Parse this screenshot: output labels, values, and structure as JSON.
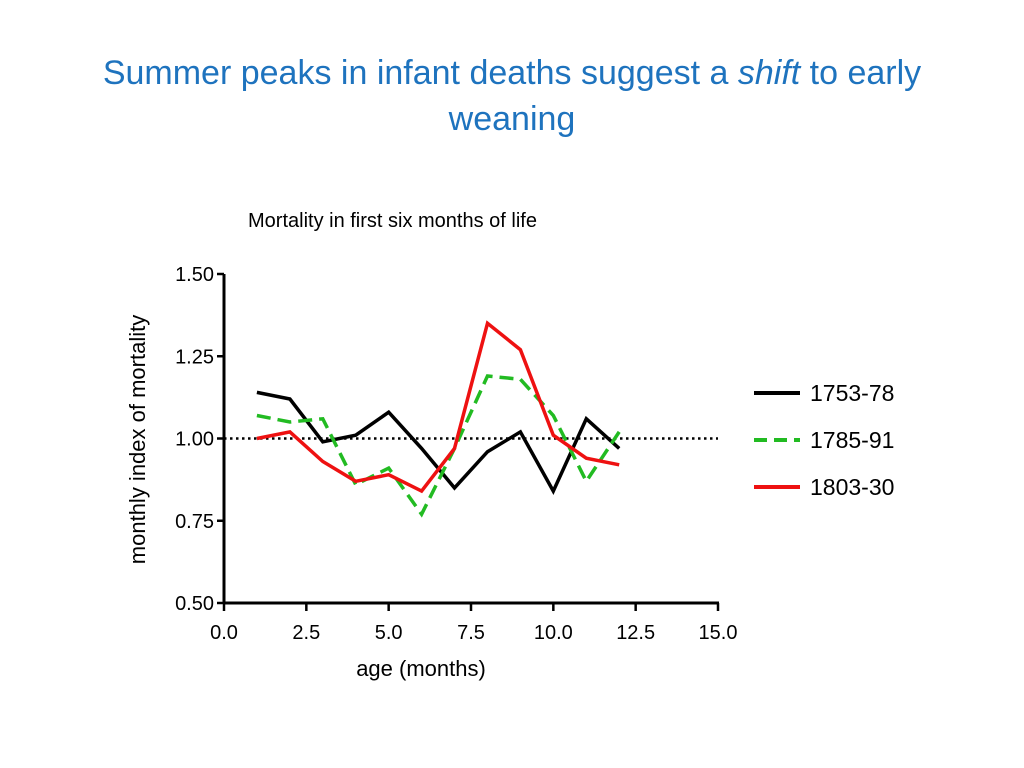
{
  "slide": {
    "title_before": "Summer peaks in infant deaths suggest a ",
    "title_emph": "shift",
    "title_after": " to early weaning",
    "subtitle": "Mortality in first six months of life"
  },
  "chart_data": {
    "type": "line",
    "title": "",
    "xlabel": "age (months)",
    "ylabel": "monthly index of mortality",
    "xlim": [
      0.0,
      15.0
    ],
    "ylim": [
      0.5,
      1.5
    ],
    "xticks": [
      0.0,
      2.5,
      5.0,
      7.5,
      10.0,
      12.5,
      15.0
    ],
    "xtick_labels": [
      "0.0",
      "2.5",
      "5.0",
      "7.5",
      "10.0",
      "12.5",
      "15.0"
    ],
    "yticks": [
      0.5,
      0.75,
      1.0,
      1.25,
      1.5
    ],
    "ytick_labels": [
      "0.50",
      "0.75",
      "1.00",
      "1.25",
      "1.50"
    ],
    "grid": false,
    "legend_position": "right",
    "reference_line": {
      "y": 1.0,
      "style": "dotted"
    },
    "x": [
      1,
      2,
      3,
      4,
      5,
      6,
      7,
      8,
      9,
      10,
      11,
      12
    ],
    "series": [
      {
        "name": "1753-78",
        "color": "#000000",
        "style": "solid",
        "values": [
          1.14,
          1.12,
          0.99,
          1.01,
          1.08,
          0.97,
          0.85,
          0.96,
          1.02,
          0.84,
          1.06,
          0.97
        ]
      },
      {
        "name": "1785-91",
        "color": "#22bb22",
        "style": "dashed",
        "values": [
          1.07,
          1.05,
          1.06,
          0.86,
          0.91,
          0.77,
          0.97,
          1.19,
          1.18,
          1.07,
          0.87,
          1.02
        ]
      },
      {
        "name": "1803-30",
        "color": "#ee1111",
        "style": "solid",
        "values": [
          1.0,
          1.02,
          0.93,
          0.87,
          0.89,
          0.84,
          0.97,
          1.35,
          1.27,
          1.01,
          0.94,
          0.92
        ]
      }
    ]
  }
}
